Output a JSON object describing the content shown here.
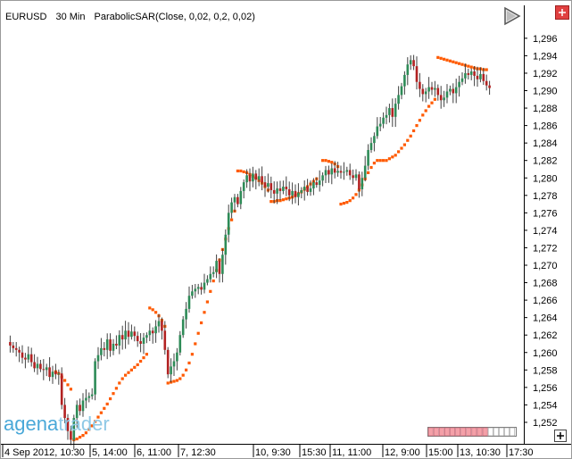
{
  "header": {
    "instrument": "EURUSD",
    "timeframe": "30 Min",
    "indicator": "ParabolicSAR(Close, 0,02, 0,2, 0,02)"
  },
  "logo": {
    "part1": "agena",
    "part2": "trader"
  },
  "colors": {
    "bull": "#2e8b57",
    "bear": "#b22222",
    "sar": "#ff5a00",
    "grid": "#d3d3d3",
    "axis": "#000000"
  },
  "icons": {
    "play": "play-triangle-icon",
    "close": "close-x-icon",
    "corner": "corner-plus-icon"
  },
  "chart_data": {
    "type": "candlestick",
    "ylim": [
      1.25,
      1.2985
    ],
    "y_ticks": [
      "1,296",
      "1,294",
      "1,292",
      "1,290",
      "1,288",
      "1,286",
      "1,284",
      "1,282",
      "1,280",
      "1,278",
      "1,276",
      "1,274",
      "1,272",
      "1,270",
      "1,268",
      "1,266",
      "1,264",
      "1,262",
      "1,260",
      "1,258",
      "1,256",
      "1,254",
      "1,252"
    ],
    "x_labels": [
      "4 Sep 2012, 10:30",
      "5, 14:00",
      "6, 11:00",
      "7, 12:30",
      "10, 9:30",
      "15:30",
      "11, 11:00",
      "12, 9:00",
      "15:00",
      "13, 10:30",
      "17:30"
    ],
    "closes": [
      1.2612,
      1.2608,
      1.2605,
      1.2603,
      1.26,
      1.2594,
      1.2592,
      1.2598,
      1.2589,
      1.2582,
      1.2587,
      1.2581,
      1.258,
      1.2583,
      1.2572,
      1.2578,
      1.2575,
      1.2576,
      1.254,
      1.2525,
      1.251,
      1.25,
      1.2525,
      1.254,
      1.2533,
      1.2545,
      1.2548,
      1.255,
      1.2552,
      1.259,
      1.2597,
      1.2605,
      1.2603,
      1.2615,
      1.2602,
      1.261,
      1.2608,
      1.262,
      1.2615,
      1.2625,
      1.2618,
      1.2624,
      1.2619,
      1.2613,
      1.261,
      1.2617,
      1.262,
      1.2625,
      1.2622,
      1.263,
      1.2636,
      1.2625,
      1.2603,
      1.2575,
      1.2584,
      1.259,
      1.26,
      1.262,
      1.2638,
      1.265,
      1.2665,
      1.267,
      1.2673,
      1.2675,
      1.2672,
      1.268,
      1.2684,
      1.269,
      1.2692,
      1.2705,
      1.269,
      1.2712,
      1.2735,
      1.276,
      1.2772,
      1.2778,
      1.277,
      1.2785,
      1.2795,
      1.2803,
      1.2796,
      1.2805,
      1.2798,
      1.2802,
      1.2795,
      1.279,
      1.2794,
      1.2786,
      1.2782,
      1.2788,
      1.2785,
      1.279,
      1.2787,
      1.278,
      1.2785,
      1.2778,
      1.2783,
      1.2786,
      1.279,
      1.2784,
      1.2788,
      1.2795,
      1.2792,
      1.2797,
      1.2803,
      1.2809,
      1.2804,
      1.2811,
      1.2806,
      1.2808,
      1.2806,
      1.2807,
      1.2809,
      1.2803,
      1.28,
      1.2804,
      1.2787,
      1.28,
      1.2814,
      1.2832,
      1.284,
      1.2848,
      1.2859,
      1.2862,
      1.2869,
      1.2872,
      1.288,
      1.287,
      1.2885,
      1.2895,
      1.2905,
      1.2918,
      1.293,
      1.2935,
      1.2928,
      1.291,
      1.2902,
      1.2896,
      1.2899,
      1.2904,
      1.2901,
      1.2903,
      1.2895,
      1.2889,
      1.2892,
      1.2899,
      1.2902,
      1.2897,
      1.2904,
      1.291,
      1.2914,
      1.292,
      1.2918,
      1.2922,
      1.2917,
      1.2913,
      1.2919,
      1.2911,
      1.2906,
      1.2903
    ],
    "sar_segments": [
      {
        "start": 16,
        "values": [
          1.2578,
          1.2576,
          1.2572,
          1.2568,
          1.2563,
          1.2558
        ]
      },
      {
        "start": 22,
        "values": [
          1.25,
          1.2501,
          1.2503,
          1.2505,
          1.2508,
          1.2512,
          1.2516,
          1.2521,
          1.2526,
          1.2531,
          1.2536,
          1.2541,
          1.2547,
          1.2553,
          1.2559,
          1.2565,
          1.257,
          1.2574,
          1.2577,
          1.258,
          1.2583,
          1.2586,
          1.259,
          1.2594,
          1.2598
        ]
      },
      {
        "start": 47,
        "values": [
          1.2651,
          1.2649,
          1.2646,
          1.2642,
          1.2637,
          1.263
        ]
      },
      {
        "start": 53,
        "values": [
          1.2565,
          1.2566,
          1.2567,
          1.2568,
          1.257,
          1.2574,
          1.258,
          1.2588,
          1.2598,
          1.261,
          1.2622,
          1.2634,
          1.2646,
          1.2658,
          1.267,
          1.2682,
          1.2694,
          1.2706,
          1.2718,
          1.273,
          1.2742,
          1.2752,
          1.2762
        ]
      },
      {
        "start": 76,
        "values": [
          1.2808,
          1.2808,
          1.2807,
          1.2806,
          1.2804,
          1.2802,
          1.28,
          1.2797,
          1.2794,
          1.279,
          1.2786
        ]
      },
      {
        "start": 87,
        "values": [
          1.2773,
          1.2773,
          1.2774,
          1.2774,
          1.2775,
          1.2776,
          1.2777,
          1.2778,
          1.278,
          1.2782,
          1.2784,
          1.2787,
          1.279,
          1.2793,
          1.2796,
          1.2799
        ]
      },
      {
        "start": 104,
        "values": [
          1.282,
          1.282,
          1.2819,
          1.2818,
          1.2816,
          1.2813
        ]
      },
      {
        "start": 110,
        "values": [
          1.277,
          1.2771,
          1.2772,
          1.2774,
          1.2777,
          1.2781,
          1.2786,
          1.2792,
          1.2799,
          1.2806,
          1.2812,
          1.2817
        ]
      },
      {
        "start": 122,
        "values": [
          1.282,
          1.282,
          1.282,
          1.282,
          1.2822,
          1.2824,
          1.2826,
          1.283,
          1.2834,
          1.2838,
          1.2843,
          1.2848,
          1.2854,
          1.286,
          1.2866,
          1.2872,
          1.2877,
          1.2882,
          1.2886,
          1.289
        ]
      },
      {
        "start": 142,
        "values": [
          1.2938,
          1.2937,
          1.2936,
          1.2935,
          1.2934,
          1.2933,
          1.2932,
          1.2931,
          1.293,
          1.2929,
          1.2928,
          1.2927,
          1.2926,
          1.2925,
          1.2925,
          1.2924,
          1.2924
        ]
      }
    ]
  }
}
